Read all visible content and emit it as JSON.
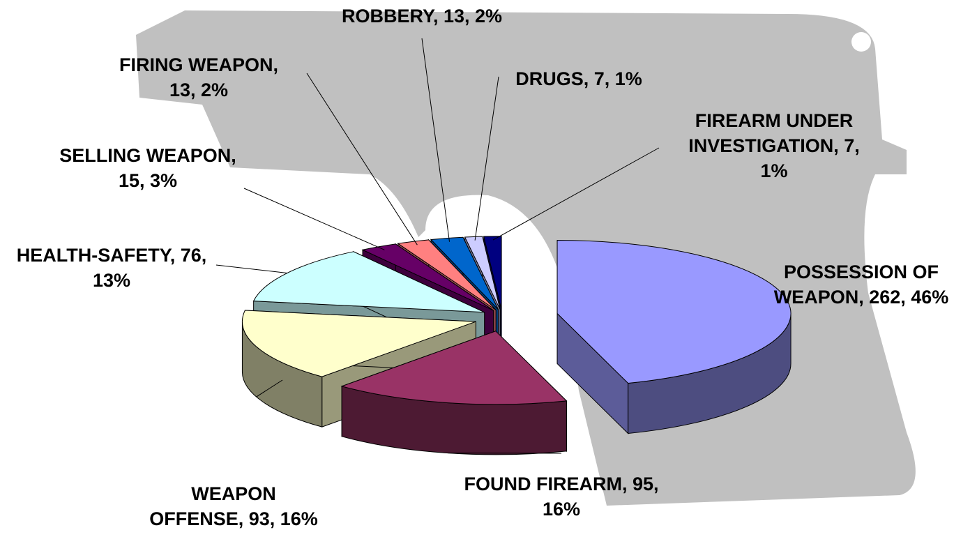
{
  "chart_data": {
    "type": "pie3d",
    "value_labels": [
      "POSSESSION OF WEAPON, 262, 46%",
      "FOUND FIREARM, 95, 16%",
      "WEAPON OFFENSE, 93, 16%",
      "HEALTH-SAFETY, 76, 13%",
      "SELLING WEAPON, 15, 3%",
      "FIRING WEAPON, 13, 2%",
      "ROBBERY, 13, 2%",
      "DRUGS, 7, 1%",
      "FIREARM UNDER INVESTIGATION, 7, 1%"
    ],
    "values": [
      262,
      95,
      93,
      76,
      15,
      13,
      13,
      7,
      7
    ],
    "colors": [
      "#9999ff",
      "#993366",
      "#ffffcc",
      "#ccffff",
      "#660066",
      "#ff8080",
      "#0066cc",
      "#ccccff",
      "#000080"
    ]
  }
}
